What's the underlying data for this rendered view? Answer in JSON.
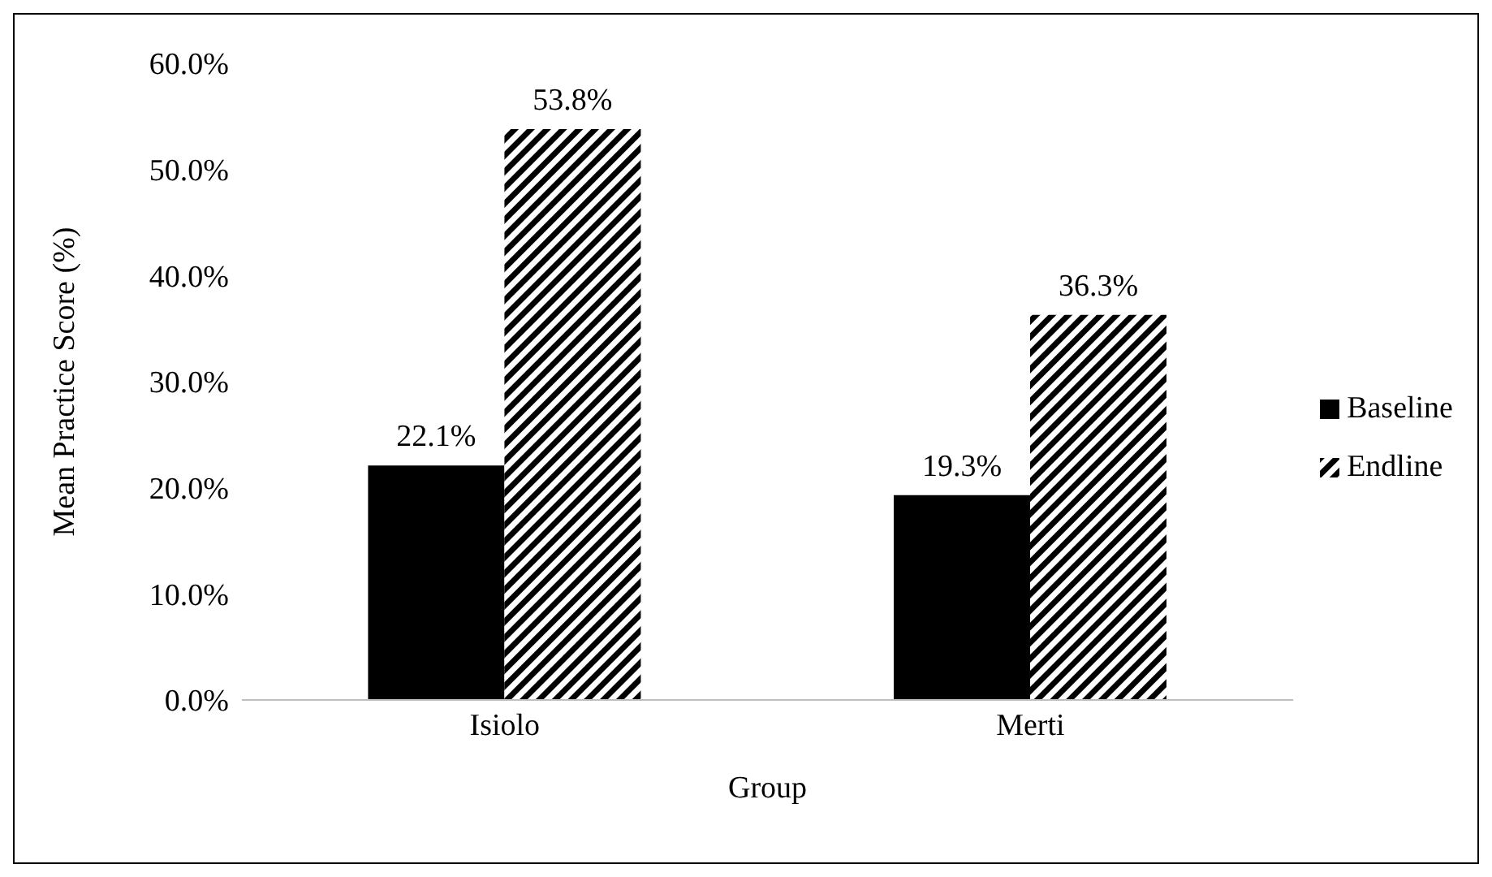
{
  "chart_data": {
    "type": "bar",
    "xlabel": "Group",
    "ylabel": "Mean Practice Score (%)",
    "categories": [
      "Isiolo",
      "Merti"
    ],
    "series": [
      {
        "name": "Baseline",
        "color": "#000000",
        "values": [
          22.1,
          19.3
        ],
        "value_labels": [
          "22.1%",
          "19.3%"
        ]
      },
      {
        "name": "Endline",
        "color": "#000000",
        "values": [
          53.8,
          36.3
        ],
        "value_labels": [
          "53.8%",
          "36.3%"
        ]
      }
    ],
    "ylim": [
      0,
      60
    ],
    "yticks": [
      {
        "value": 0,
        "label": "0.0%"
      },
      {
        "value": 10,
        "label": "10.0%"
      },
      {
        "value": 20,
        "label": "20.0%"
      },
      {
        "value": 30,
        "label": "30.0%"
      },
      {
        "value": 40,
        "label": "40.0%"
      },
      {
        "value": 50,
        "label": "50.0%"
      },
      {
        "value": 60,
        "label": "60.0%"
      }
    ],
    "grid": false,
    "legend": "right"
  }
}
